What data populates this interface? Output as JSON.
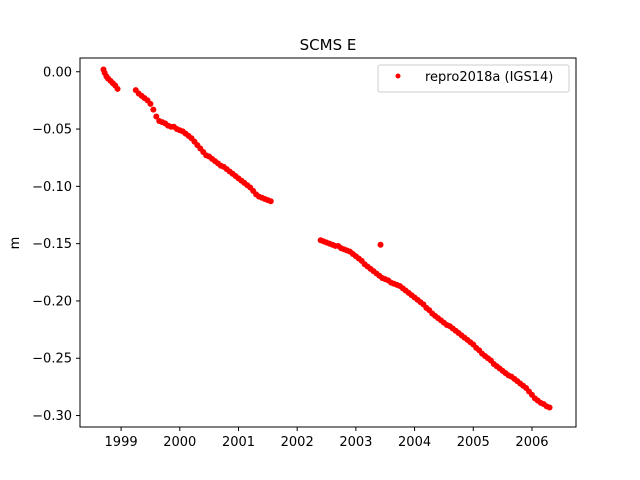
{
  "chart_data": {
    "type": "scatter",
    "title": "SCMS E",
    "xlabel": "",
    "ylabel": "m",
    "xlim": [
      1998.3,
      2006.75
    ],
    "ylim": [
      -0.31,
      0.012
    ],
    "x_ticks": [
      1999,
      2000,
      2001,
      2002,
      2003,
      2004,
      2005,
      2006
    ],
    "x_tick_labels": [
      "1999",
      "2000",
      "2001",
      "2002",
      "2003",
      "2004",
      "2005",
      "2006"
    ],
    "y_ticks": [
      0.0,
      -0.05,
      -0.1,
      -0.15,
      -0.2,
      -0.25,
      -0.3
    ],
    "y_tick_labels": [
      "0.00",
      "−0.05",
      "−0.10",
      "−0.15",
      "−0.20",
      "−0.25",
      "−0.30"
    ],
    "grid": false,
    "legend_position": "top-right",
    "series": [
      {
        "name": "repro2018a (IGS14)",
        "color": "#ff0000",
        "marker": "circle",
        "points": [
          [
            1998.7,
            0.002
          ],
          [
            1998.72,
            -0.001
          ],
          [
            1998.75,
            -0.004
          ],
          [
            1998.78,
            -0.006
          ],
          [
            1998.82,
            -0.008
          ],
          [
            1998.86,
            -0.01
          ],
          [
            1998.9,
            -0.012
          ],
          [
            1998.94,
            -0.015
          ],
          [
            1999.25,
            -0.016
          ],
          [
            1999.3,
            -0.019
          ],
          [
            1999.35,
            -0.021
          ],
          [
            1999.4,
            -0.023
          ],
          [
            1999.45,
            -0.025
          ],
          [
            1999.5,
            -0.028
          ],
          [
            1999.55,
            -0.033
          ],
          [
            1999.6,
            -0.039
          ],
          [
            1999.65,
            -0.043
          ],
          [
            1999.7,
            -0.044
          ],
          [
            1999.75,
            -0.045
          ],
          [
            1999.8,
            -0.047
          ],
          [
            1999.85,
            -0.048
          ],
          [
            1999.9,
            -0.048
          ],
          [
            1999.95,
            -0.05
          ],
          [
            2000.0,
            -0.051
          ],
          [
            2000.05,
            -0.052
          ],
          [
            2000.1,
            -0.054
          ],
          [
            2000.15,
            -0.056
          ],
          [
            2000.2,
            -0.058
          ],
          [
            2000.25,
            -0.061
          ],
          [
            2000.3,
            -0.064
          ],
          [
            2000.35,
            -0.067
          ],
          [
            2000.4,
            -0.07
          ],
          [
            2000.45,
            -0.073
          ],
          [
            2000.5,
            -0.074
          ],
          [
            2000.55,
            -0.076
          ],
          [
            2000.6,
            -0.078
          ],
          [
            2000.65,
            -0.08
          ],
          [
            2000.7,
            -0.082
          ],
          [
            2000.75,
            -0.083
          ],
          [
            2000.8,
            -0.085
          ],
          [
            2000.85,
            -0.087
          ],
          [
            2000.9,
            -0.089
          ],
          [
            2000.95,
            -0.091
          ],
          [
            2001.0,
            -0.093
          ],
          [
            2001.05,
            -0.095
          ],
          [
            2001.1,
            -0.097
          ],
          [
            2001.15,
            -0.099
          ],
          [
            2001.2,
            -0.101
          ],
          [
            2001.25,
            -0.104
          ],
          [
            2001.3,
            -0.107
          ],
          [
            2001.35,
            -0.109
          ],
          [
            2001.4,
            -0.11
          ],
          [
            2001.45,
            -0.111
          ],
          [
            2001.5,
            -0.112
          ],
          [
            2001.55,
            -0.113
          ],
          [
            2002.4,
            -0.147
          ],
          [
            2002.45,
            -0.148
          ],
          [
            2002.5,
            -0.149
          ],
          [
            2002.55,
            -0.15
          ],
          [
            2002.6,
            -0.151
          ],
          [
            2002.65,
            -0.152
          ],
          [
            2002.7,
            -0.152
          ],
          [
            2002.75,
            -0.154
          ],
          [
            2002.8,
            -0.155
          ],
          [
            2002.85,
            -0.156
          ],
          [
            2002.9,
            -0.157
          ],
          [
            2002.95,
            -0.159
          ],
          [
            2003.0,
            -0.161
          ],
          [
            2003.05,
            -0.163
          ],
          [
            2003.1,
            -0.165
          ],
          [
            2003.15,
            -0.168
          ],
          [
            2003.2,
            -0.17
          ],
          [
            2003.25,
            -0.172
          ],
          [
            2003.3,
            -0.174
          ],
          [
            2003.35,
            -0.176
          ],
          [
            2003.4,
            -0.178
          ],
          [
            2003.45,
            -0.18
          ],
          [
            2003.42,
            -0.151
          ],
          [
            2003.5,
            -0.181
          ],
          [
            2003.55,
            -0.182
          ],
          [
            2003.6,
            -0.184
          ],
          [
            2003.65,
            -0.185
          ],
          [
            2003.7,
            -0.186
          ],
          [
            2003.75,
            -0.187
          ],
          [
            2003.8,
            -0.189
          ],
          [
            2003.85,
            -0.191
          ],
          [
            2003.9,
            -0.193
          ],
          [
            2003.95,
            -0.195
          ],
          [
            2004.0,
            -0.197
          ],
          [
            2004.05,
            -0.199
          ],
          [
            2004.1,
            -0.201
          ],
          [
            2004.15,
            -0.203
          ],
          [
            2004.2,
            -0.206
          ],
          [
            2004.25,
            -0.208
          ],
          [
            2004.3,
            -0.211
          ],
          [
            2004.35,
            -0.213
          ],
          [
            2004.4,
            -0.215
          ],
          [
            2004.45,
            -0.217
          ],
          [
            2004.5,
            -0.219
          ],
          [
            2004.55,
            -0.221
          ],
          [
            2004.6,
            -0.222
          ],
          [
            2004.65,
            -0.224
          ],
          [
            2004.7,
            -0.226
          ],
          [
            2004.75,
            -0.228
          ],
          [
            2004.8,
            -0.23
          ],
          [
            2004.85,
            -0.232
          ],
          [
            2004.9,
            -0.234
          ],
          [
            2004.95,
            -0.236
          ],
          [
            2005.0,
            -0.238
          ],
          [
            2005.05,
            -0.241
          ],
          [
            2005.1,
            -0.243
          ],
          [
            2005.15,
            -0.246
          ],
          [
            2005.2,
            -0.248
          ],
          [
            2005.25,
            -0.25
          ],
          [
            2005.3,
            -0.252
          ],
          [
            2005.35,
            -0.255
          ],
          [
            2005.4,
            -0.257
          ],
          [
            2005.45,
            -0.259
          ],
          [
            2005.5,
            -0.261
          ],
          [
            2005.55,
            -0.263
          ],
          [
            2005.6,
            -0.265
          ],
          [
            2005.65,
            -0.266
          ],
          [
            2005.7,
            -0.268
          ],
          [
            2005.75,
            -0.27
          ],
          [
            2005.8,
            -0.272
          ],
          [
            2005.85,
            -0.274
          ],
          [
            2005.9,
            -0.276
          ],
          [
            2005.95,
            -0.279
          ],
          [
            2006.0,
            -0.282
          ],
          [
            2006.05,
            -0.285
          ],
          [
            2006.1,
            -0.287
          ],
          [
            2006.15,
            -0.289
          ],
          [
            2006.2,
            -0.29
          ],
          [
            2006.25,
            -0.292
          ],
          [
            2006.3,
            -0.293
          ]
        ]
      }
    ]
  }
}
